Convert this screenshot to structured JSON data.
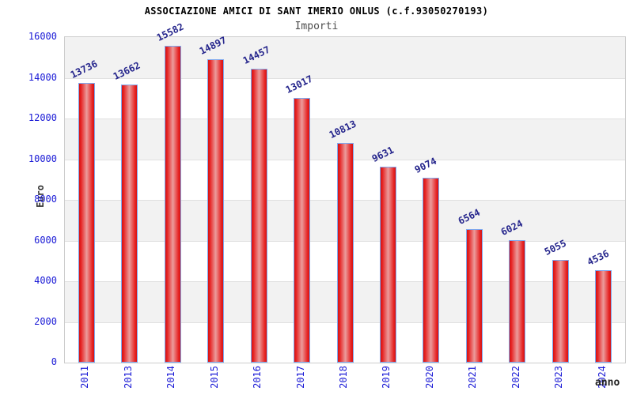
{
  "header": {
    "title": "ASSOCIAZIONE AMICI DI SANT IMERIO ONLUS (c.f.93050270193)",
    "subtitle": "Importi"
  },
  "chart_data": {
    "type": "bar",
    "title": "ASSOCIAZIONE AMICI DI SANT IMERIO ONLUS (c.f.93050270193)",
    "subtitle": "Importi",
    "categories": [
      "2011",
      "2013",
      "2014",
      "2015",
      "2016",
      "2017",
      "2018",
      "2019",
      "2020",
      "2021",
      "2022",
      "2023",
      "2024"
    ],
    "values": [
      13736,
      13662,
      15582,
      14897,
      14457,
      13017,
      10813,
      9631,
      9074,
      6564,
      6024,
      5055,
      4536
    ],
    "xlabel": "anno",
    "ylabel": "Euro",
    "ylim": [
      0,
      16000
    ],
    "ytick_step": 2000,
    "ytick_labels": [
      "0",
      "2000",
      "4000",
      "6000",
      "8000",
      "10000",
      "12000",
      "14000",
      "16000"
    ],
    "legend": "none",
    "grid": "alternating horizontal bands every 2000 with light gridlines",
    "value_labels_rotation_deg": -26,
    "x_labels_rotation_deg": -90,
    "colors": {
      "bar_edge_red": "#d31414",
      "bar_mid_red": "#e62222",
      "bar_center_pink": "#eb9c9c",
      "bar_border_blue": "#7fa8ee",
      "tick_label_blue": "#1a1ad6",
      "value_label_navy": "#25258c",
      "band_gray": "#f2f2f2",
      "band_white": "#ffffff",
      "grid_line": "#e0e0e0",
      "plot_border": "#cccccc",
      "title_black": "#000000",
      "subtitle_gray": "#4d4d4d",
      "axis_title_dark": "#333333"
    }
  }
}
